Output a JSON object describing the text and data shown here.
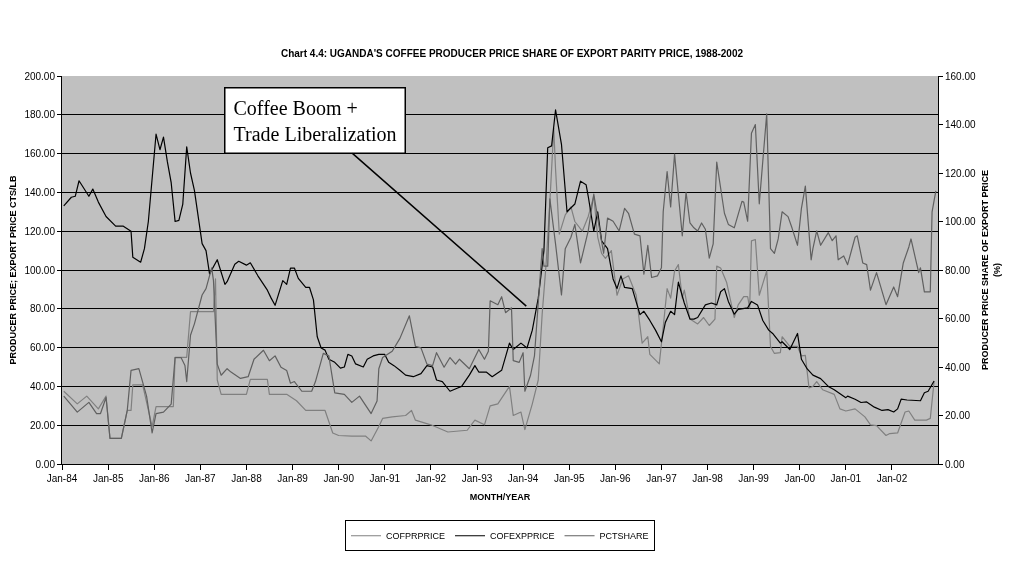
{
  "chart_data": {
    "type": "line",
    "title": "Chart 4.4: UGANDA'S COFFEE PRODUCER PRICE SHARE OF EXPORT PARITY PRICE, 1988-2002",
    "xlabel": "MONTH/YEAR",
    "ylabel": "PRODUCER PRICE; EXPORT PRICE CTS/LB",
    "y2label": "PRODUCER PRICE SHARE OF EXPORT PRICE\n(%)",
    "annotations": [
      "Coffee Boom +\nTrade Liberalization"
    ],
    "xlim": [
      "1984-01-01",
      "2003-01-01"
    ],
    "xticks": [
      {
        "value": "1984-01-01",
        "label": "Jan-84"
      },
      {
        "value": "1985-01-01",
        "label": "Jan-85"
      },
      {
        "value": "1986-01-01",
        "label": "Jan-86"
      },
      {
        "value": "1987-01-01",
        "label": "Jan-87"
      },
      {
        "value": "1988-01-01",
        "label": "Jan-88"
      },
      {
        "value": "1989-01-01",
        "label": "Jan-89"
      },
      {
        "value": "1990-01-01",
        "label": "Jan-90"
      },
      {
        "value": "1991-01-01",
        "label": "Jan-91"
      },
      {
        "value": "1992-01-01",
        "label": "Jan-92"
      },
      {
        "value": "1993-01-01",
        "label": "Jan-93"
      },
      {
        "value": "1994-01-01",
        "label": "Jan-94"
      },
      {
        "value": "1995-01-01",
        "label": "Jan-95"
      },
      {
        "value": "1996-01-01",
        "label": "Jan-96"
      },
      {
        "value": "1997-01-01",
        "label": "Jan-97"
      },
      {
        "value": "1998-01-01",
        "label": "Jan-98"
      },
      {
        "value": "1999-01-01",
        "label": "Jan-99"
      },
      {
        "value": "2000-01-01",
        "label": "Jan-00"
      },
      {
        "value": "2001-01-01",
        "label": "Jan-01"
      },
      {
        "value": "2002-01-01",
        "label": "Jan-02"
      }
    ],
    "ylim": [
      0,
      200
    ],
    "yticks": [
      {
        "value": 0,
        "label": "0.00"
      },
      {
        "value": 20,
        "label": "20.00"
      },
      {
        "value": 40,
        "label": "40.00"
      },
      {
        "value": 60,
        "label": "60.00"
      },
      {
        "value": 80,
        "label": "80.00"
      },
      {
        "value": 100,
        "label": "100.00"
      },
      {
        "value": 120,
        "label": "120.00"
      },
      {
        "value": 140,
        "label": "140.00"
      },
      {
        "value": 160,
        "label": "160.00"
      },
      {
        "value": 180,
        "label": "180.00"
      },
      {
        "value": 200,
        "label": "200.00"
      }
    ],
    "y2lim": [
      0,
      160
    ],
    "y2ticks": [
      {
        "value": 0,
        "label": "0.00"
      },
      {
        "value": 20,
        "label": "20.00"
      },
      {
        "value": 40,
        "label": "40.00"
      },
      {
        "value": 60,
        "label": "60.00"
      },
      {
        "value": 80,
        "label": "80.00"
      },
      {
        "value": 100,
        "label": "100.00"
      },
      {
        "value": 120,
        "label": "120.00"
      },
      {
        "value": 140,
        "label": "140.00"
      },
      {
        "value": 160,
        "label": "160.00"
      }
    ],
    "grid": "y",
    "legend": "bottom",
    "series": [
      {
        "name": "COFPRPRICE",
        "color": "#808080",
        "x": [
          "1984-01-15",
          "1984-05-01",
          "1984-07-15",
          "1984-10-15",
          "1984-12-15",
          "1985-01-15",
          "1985-04-15",
          "1985-06-01",
          "1985-07-01",
          "1985-07-15",
          "1985-10-01",
          "1985-12-15",
          "1986-01-15",
          "1986-06-01",
          "1986-06-15",
          "1986-09-15",
          "1986-10-15",
          "1987-04-15",
          "1987-05-01",
          "1987-05-15",
          "1987-06-15",
          "1988-01-01",
          "1988-02-01",
          "1988-06-15",
          "1988-07-01",
          "1988-11-15",
          "1989-02-01",
          "1989-04-15",
          "1989-09-15",
          "1989-11-15",
          "1990-01-01",
          "1990-04-15",
          "1990-08-01",
          "1990-09-15",
          "1990-11-15",
          "1990-12-15",
          "1991-03-01",
          "1991-06-15",
          "1991-08-01",
          "1991-09-01",
          "1992-01-01",
          "1992-05-15",
          "1992-10-15",
          "1992-12-15",
          "1993-03-01",
          "1993-04-15",
          "1993-06-15",
          "1993-09-15",
          "1993-10-15",
          "1993-12-15",
          "1994-01-15",
          "1994-03-15",
          "1994-05-01",
          "1994-06-01",
          "1994-07-01",
          "1994-08-01",
          "1994-09-01",
          "1994-09-15",
          "1994-10-15",
          "1994-12-01",
          "1995-01-15",
          "1995-02-15",
          "1995-04-15",
          "1995-06-01",
          "1995-07-15",
          "1995-08-15",
          "1995-09-15",
          "1995-10-15",
          "1995-12-01",
          "1996-01-15",
          "1996-03-01",
          "1996-04-15",
          "1996-06-15",
          "1996-08-01",
          "1996-09-15",
          "1996-10-01",
          "1996-12-15",
          "1997-01-15",
          "1997-02-15",
          "1997-03-15",
          "1997-04-15",
          "1997-05-15",
          "1997-06-15",
          "1997-07-01",
          "1997-08-15",
          "1997-10-15",
          "1997-12-01",
          "1998-01-15",
          "1998-03-01",
          "1998-03-15",
          "1998-04-15",
          "1998-06-01",
          "1998-08-01",
          "1998-09-01",
          "1998-10-15",
          "1998-11-15",
          "1998-12-01",
          "1998-12-15",
          "1999-01-15",
          "1999-02-15",
          "1999-04-15",
          "1999-05-15",
          "1999-06-15",
          "1999-08-01",
          "1999-08-15",
          "1999-10-15",
          "1999-12-15",
          "2000-01-15",
          "2000-02-15",
          "2000-03-15",
          "2000-04-15",
          "2000-05-15",
          "2000-07-01",
          "2000-10-01",
          "2000-11-15",
          "2001-01-01",
          "2001-03-15",
          "2001-06-01",
          "2001-07-15",
          "2001-09-01",
          "2001-11-15",
          "2001-12-15",
          "2002-02-15",
          "2002-04-15",
          "2002-05-15",
          "2002-07-01",
          "2002-10-01",
          "2002-11-01",
          "2002-12-01"
        ],
        "values": [
          37.5,
          31,
          35,
          28.4,
          35,
          13.2,
          13.2,
          27.6,
          27.6,
          40.8,
          40.8,
          19.3,
          29.6,
          29.6,
          55,
          55,
          78.5,
          78.5,
          95.4,
          43.3,
          35.9,
          35.9,
          43.6,
          43.6,
          35.9,
          35.9,
          32.6,
          27.6,
          27.6,
          16,
          14.7,
          14.4,
          14.4,
          11.9,
          19.3,
          23.5,
          24.3,
          25,
          27.6,
          22.6,
          20.2,
          16.5,
          17.4,
          22.6,
          20.2,
          30,
          31,
          40,
          25,
          26.8,
          17.7,
          31,
          43.3,
          77.2,
          102,
          135,
          173,
          152,
          118.5,
          128.4,
          132.5,
          125,
          120,
          127.6,
          138,
          117,
          108.6,
          106,
          110,
          87,
          95.4,
          97,
          87,
          62.3,
          65.6,
          56.5,
          51.6,
          70.6,
          90.4,
          85.5,
          99.5,
          102.8,
          85.5,
          89.6,
          74.7,
          72.2,
          75.5,
          71.4,
          74.7,
          102,
          101,
          93.7,
          75.5,
          82,
          86.3,
          86.3,
          80.5,
          115,
          115.7,
          87,
          99.5,
          60.6,
          57,
          57.4,
          65.6,
          60.6,
          60.6,
          55.7,
          56,
          39.2,
          40,
          42.5,
          38.3,
          35.9,
          28.4,
          27.3,
          28.4,
          24.3,
          20.2,
          19.8,
          14.7,
          15.7,
          16,
          26.8,
          27.3,
          22.6,
          22.6,
          23.5,
          42.5
        ]
      },
      {
        "name": "COFEXPPRICE",
        "color": "#000000",
        "x": [
          "1984-01-15",
          "1984-03-15",
          "1984-04-15",
          "1984-05-15",
          "1984-08-01",
          "1984-09-01",
          "1984-10-15",
          "1984-12-15",
          "1985-03-01",
          "1985-05-01",
          "1985-07-01",
          "1985-07-15",
          "1985-09-15",
          "1985-10-15",
          "1985-11-15",
          "1986-01-15",
          "1986-02-15",
          "1986-03-15",
          "1986-04-15",
          "1986-05-15",
          "1986-06-15",
          "1986-07-15",
          "1986-08-15",
          "1986-09-15",
          "1986-10-15",
          "1986-11-15",
          "1987-01-15",
          "1987-02-15",
          "1987-03-15",
          "1987-05-15",
          "1987-07-15",
          "1987-08-01",
          "1987-10-01",
          "1987-11-01",
          "1988-01-01",
          "1988-02-01",
          "1988-04-01",
          "1988-06-15",
          "1988-07-15",
          "1988-08-15",
          "1988-10-15",
          "1988-11-15",
          "1988-12-15",
          "1989-01-15",
          "1989-02-15",
          "1989-04-15",
          "1989-05-15",
          "1989-06-15",
          "1989-07-15",
          "1989-08-15",
          "1989-09-15",
          "1989-10-15",
          "1989-12-01",
          "1990-01-15",
          "1990-02-15",
          "1990-03-15",
          "1990-04-15",
          "1990-05-15",
          "1990-07-15",
          "1990-08-15",
          "1990-10-01",
          "1990-11-15",
          "1991-01-01",
          "1991-02-01",
          "1991-03-15",
          "1991-05-01",
          "1991-06-15",
          "1991-08-15",
          "1991-10-15",
          "1991-12-01",
          "1992-01-15",
          "1992-02-15",
          "1992-04-01",
          "1992-06-01",
          "1992-08-01",
          "1992-09-01",
          "1992-11-01",
          "1992-12-15",
          "1993-01-15",
          "1993-03-15",
          "1993-05-01",
          "1993-07-15",
          "1993-09-15",
          "1993-10-15",
          "1993-12-15",
          "1994-02-01",
          "1994-03-15",
          "1994-05-01",
          "1994-06-15",
          "1994-07-15",
          "1994-08-15",
          "1994-09-15",
          "1994-11-01",
          "1994-12-15",
          "1995-02-15",
          "1995-04-01",
          "1995-05-15",
          "1995-06-01",
          "1995-07-15",
          "1995-08-15",
          "1995-09-15",
          "1995-11-01",
          "1995-12-15",
          "1996-01-15",
          "1996-02-15",
          "1996-03-15",
          "1996-05-15",
          "1996-07-15",
          "1996-08-15",
          "1996-10-01",
          "1996-11-15",
          "1997-01-01",
          "1997-02-01",
          "1997-03-15",
          "1997-04-15",
          "1997-05-15",
          "1997-07-01",
          "1997-08-15",
          "1997-09-15",
          "1997-10-15",
          "1997-12-15",
          "1998-02-01",
          "1998-03-15",
          "1998-04-15",
          "1998-05-15",
          "1998-06-15",
          "1998-08-01",
          "1998-09-01",
          "1998-11-15",
          "1998-12-15",
          "1999-02-01",
          "1999-03-15",
          "1999-05-01",
          "1999-06-01",
          "1999-08-01",
          "1999-08-15",
          "1999-10-15",
          "1999-12-15",
          "2000-01-15",
          "2000-03-01",
          "2000-04-15",
          "2000-06-15",
          "2000-08-15",
          "2000-10-01",
          "2001-01-01",
          "2001-01-15",
          "2001-03-15",
          "2001-05-01",
          "2001-06-15",
          "2001-08-15",
          "2001-10-15",
          "2001-12-01",
          "2002-01-15",
          "2002-02-15",
          "2002-03-15",
          "2002-05-01",
          "2002-08-15",
          "2002-09-15",
          "2002-10-15",
          "2002-12-01"
        ],
        "values": [
          133,
          137.5,
          138,
          146,
          138,
          141.7,
          135,
          127.6,
          122.6,
          122.6,
          120,
          106.6,
          104,
          111,
          125,
          170,
          162,
          168.5,
          155.7,
          145,
          125,
          125.6,
          134,
          163.5,
          150,
          141,
          113.6,
          110,
          98,
          105.3,
          92.6,
          94,
          103,
          104.5,
          102.5,
          103.7,
          97,
          89.6,
          85.5,
          81.8,
          94.5,
          92.6,
          101,
          101,
          95.7,
          91,
          91,
          84.6,
          65.6,
          59.8,
          58.7,
          54,
          52.4,
          49.4,
          50,
          56.5,
          55.7,
          51.6,
          50,
          54,
          55.7,
          56.5,
          56.5,
          52.4,
          50.7,
          48.3,
          45.8,
          45,
          46.6,
          50.7,
          50,
          43.3,
          42.5,
          37.5,
          39.2,
          40,
          45.8,
          50.7,
          47.4,
          47.4,
          45,
          48.3,
          62.3,
          59,
          62.3,
          59.8,
          69,
          85.5,
          110,
          163,
          164,
          182.5,
          164.8,
          130,
          134,
          145.8,
          144,
          138,
          120,
          130,
          115,
          111,
          95.4,
          90.4,
          97,
          91,
          90.4,
          77,
          78.7,
          74,
          69,
          63,
          73,
          78.7,
          77,
          93.7,
          83,
          74.7,
          74.7,
          75.5,
          82,
          83,
          82,
          88.8,
          90.4,
          83.8,
          77.2,
          79.7,
          80.5,
          83.8,
          82,
          74,
          69,
          67.3,
          62.3,
          63,
          59,
          67.3,
          54,
          49,
          45.8,
          44,
          40,
          38.3,
          34.2,
          35,
          33.4,
          31.7,
          32,
          29.3,
          27.6,
          28,
          26.8,
          28.4,
          33.4,
          33,
          32.6,
          36.7,
          37.5,
          42.8
        ]
      },
      {
        "name": "PCTSHARE",
        "color": "#606060",
        "axis": "y2",
        "x": [
          "1984-01-15",
          "1984-05-01",
          "1984-08-01",
          "1984-10-01",
          "1984-11-01",
          "1984-12-15",
          "1985-01-15",
          "1985-04-15",
          "1985-06-01",
          "1985-07-01",
          "1985-09-01",
          "1985-11-01",
          "1985-12-15",
          "1986-01-15",
          "1986-03-15",
          "1986-05-15",
          "1986-06-15",
          "1986-08-01",
          "1986-09-01",
          "1986-09-15",
          "1986-10-15",
          "1986-11-15",
          "1987-01-15",
          "1987-02-15",
          "1987-04-01",
          "1987-04-15",
          "1987-05-15",
          "1987-06-15",
          "1987-08-01",
          "1987-09-01",
          "1987-11-15",
          "1988-01-15",
          "1988-03-01",
          "1988-05-15",
          "1988-07-01",
          "1988-08-15",
          "1988-10-01",
          "1988-11-15",
          "1988-12-15",
          "1989-01-15",
          "1989-03-15",
          "1989-06-01",
          "1989-07-01",
          "1989-09-01",
          "1989-10-15",
          "1989-12-01",
          "1990-02-15",
          "1990-04-15",
          "1990-06-15",
          "1990-09-15",
          "1990-11-01",
          "1990-11-15",
          "1990-12-15",
          "1991-03-01",
          "1991-05-01",
          "1991-07-15",
          "1991-09-01",
          "1991-10-15",
          "1991-12-01",
          "1992-01-15",
          "1992-02-15",
          "1992-04-15",
          "1992-06-01",
          "1992-07-15",
          "1992-08-15",
          "1992-11-01",
          "1993-01-15",
          "1993-03-01",
          "1993-04-01",
          "1993-04-15",
          "1993-06-15",
          "1993-07-15",
          "1993-08-15",
          "1993-10-01",
          "1993-10-15",
          "1993-12-01",
          "1994-01-01",
          "1994-01-15",
          "1994-03-01",
          "1994-04-01",
          "1994-06-01",
          "1994-06-15",
          "1994-07-15",
          "1994-08-01",
          "1994-09-15",
          "1994-11-01",
          "1994-12-01",
          "1995-01-15",
          "1995-02-15",
          "1995-04-01",
          "1995-06-01",
          "1995-07-15",
          "1995-09-01",
          "1995-10-01",
          "1995-11-01",
          "1995-12-15",
          "1996-02-01",
          "1996-03-15",
          "1996-04-15",
          "1996-06-01",
          "1996-07-15",
          "1996-08-15",
          "1996-09-15",
          "1996-10-15",
          "1996-12-01",
          "1997-01-01",
          "1997-01-15",
          "1997-02-15",
          "1997-03-15",
          "1997-04-15",
          "1997-06-15",
          "1997-07-15",
          "1997-08-15",
          "1997-09-15",
          "1997-10-15",
          "1997-11-15",
          "1997-12-15",
          "1998-01-15",
          "1998-02-15",
          "1998-03-15",
          "1998-05-15",
          "1998-06-15",
          "1998-08-01",
          "1998-10-01",
          "1998-10-15",
          "1998-11-15",
          "1998-12-15",
          "1999-01-15",
          "1999-02-15",
          "1999-04-15",
          "1999-05-15",
          "1999-06-15",
          "1999-07-15",
          "1999-08-15",
          "1999-10-01",
          "1999-11-01",
          "1999-12-15",
          "2000-01-15",
          "2000-02-15",
          "2000-04-01",
          "2000-04-15",
          "2000-05-15",
          "2000-06-15",
          "2000-08-15",
          "2000-09-15",
          "2000-10-15",
          "2000-11-01",
          "2000-12-15",
          "2001-01-15",
          "2001-03-15",
          "2001-04-01",
          "2001-05-15",
          "2001-06-15",
          "2001-07-15",
          "2001-09-01",
          "2001-11-15",
          "2002-01-15",
          "2002-02-15",
          "2002-04-01",
          "2002-05-15",
          "2002-06-01",
          "2002-08-01",
          "2002-08-15",
          "2002-09-15",
          "2002-11-01",
          "2002-11-15",
          "2002-12-15"
        ],
        "values": [
          28,
          21.4,
          25.4,
          20.8,
          20.8,
          27.4,
          10.6,
          10.6,
          22.1,
          38.6,
          39.3,
          28,
          12.8,
          20.8,
          21.4,
          24.7,
          43.9,
          43.9,
          40.6,
          34,
          53.1,
          57.8,
          69.7,
          72.3,
          80.9,
          75.6,
          41.2,
          36.6,
          39.3,
          37.9,
          35.3,
          36,
          43.2,
          46.9,
          42.6,
          44.6,
          39.9,
          38.6,
          33.3,
          34,
          30,
          30,
          34,
          45.6,
          44.6,
          29.3,
          28.7,
          25.4,
          28,
          20.8,
          26,
          39.3,
          43.9,
          46.5,
          51.8,
          61.1,
          48.5,
          47.9,
          41.2,
          40.6,
          45.9,
          39.9,
          43.9,
          41.2,
          43.2,
          39.3,
          47.2,
          43.2,
          46.5,
          67.3,
          65.7,
          69,
          62.4,
          64.4,
          42.6,
          41.9,
          45.9,
          30,
          36.6,
          44.6,
          88.8,
          81.6,
          81.6,
          109.3,
          90.8,
          69.7,
          88.8,
          93.5,
          98.8,
          82.9,
          96.1,
          111.3,
          96.1,
          86.9,
          101.4,
          100.1,
          96.1,
          105.4,
          103.4,
          94.8,
          94.1,
          78.3,
          90.2,
          76.9,
          77.6,
          80.9,
          104,
          120.6,
          106,
          127.8,
          94.1,
          112,
          99.4,
          97.4,
          96.1,
          99.4,
          96.8,
          84.9,
          90.8,
          124.5,
          103.4,
          98.8,
          97.4,
          108.3,
          108,
          100.1,
          136.4,
          140,
          107.3,
          144.4,
          88.8,
          86.9,
          92.8,
          104,
          102,
          97.4,
          90.2,
          105.4,
          114.6,
          84.2,
          88.8,
          96.1,
          90.2,
          95.4,
          92.1,
          94.1,
          84.2,
          85.8,
          82.2,
          93.5,
          94.1,
          82.9,
          82.2,
          71.7,
          78.9,
          65.7,
          73,
          69,
          82.9,
          89.5,
          92.8,
          78.9,
          80.9,
          71,
          71,
          104,
          112.6
        ]
      }
    ]
  }
}
